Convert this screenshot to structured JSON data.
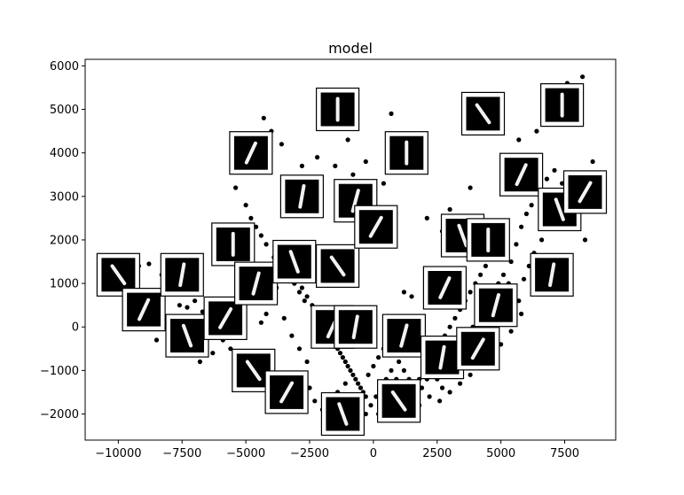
{
  "chart_data": {
    "type": "scatter",
    "title": "model",
    "xlabel": "",
    "ylabel": "",
    "xlim": [
      -11300,
      9500
    ],
    "ylim": [
      -2600,
      6150
    ],
    "xticks": [
      -10000,
      -7500,
      -5000,
      -2500,
      0,
      2500,
      5000,
      7500
    ],
    "yticks": [
      -2000,
      -1000,
      0,
      1000,
      2000,
      3000,
      4000,
      5000,
      6000
    ],
    "xtick_labels": [
      "−10000",
      "−7500",
      "−5000",
      "−2500",
      "0",
      "2500",
      "5000",
      "7500"
    ],
    "ytick_labels": [
      "−2000",
      "−1000",
      "0",
      "1000",
      "2000",
      "3000",
      "4000",
      "5000",
      "6000"
    ],
    "grid": false,
    "point_color": "#000000",
    "points": [
      [
        -9800,
        1450
      ],
      [
        -9200,
        1400
      ],
      [
        -8800,
        1450
      ],
      [
        -8300,
        1200
      ],
      [
        -7900,
        1000
      ],
      [
        -7600,
        500
      ],
      [
        -7300,
        450
      ],
      [
        -7000,
        600
      ],
      [
        -6700,
        350
      ],
      [
        -6400,
        200
      ],
      [
        -6200,
        -100
      ],
      [
        -5900,
        -300
      ],
      [
        -5600,
        -500
      ],
      [
        -5300,
        -700
      ],
      [
        -5000,
        -900
      ],
      [
        -4700,
        -1100
      ],
      [
        -4400,
        100
      ],
      [
        -4200,
        300
      ],
      [
        -4000,
        600
      ],
      [
        -3800,
        900
      ],
      [
        -3600,
        1100
      ],
      [
        -3400,
        1300
      ],
      [
        -3200,
        1500
      ],
      [
        -3000,
        1700
      ],
      [
        -2800,
        900
      ],
      [
        -2600,
        700
      ],
      [
        -2400,
        500
      ],
      [
        -2200,
        300
      ],
      [
        -2000,
        100
      ],
      [
        -1800,
        -100
      ],
      [
        -1600,
        -300
      ],
      [
        -1400,
        -500
      ],
      [
        -1200,
        -700
      ],
      [
        -1000,
        -900
      ],
      [
        -800,
        -1100
      ],
      [
        -600,
        -1300
      ],
      [
        -400,
        -1500
      ],
      [
        -200,
        -1100
      ],
      [
        0,
        -900
      ],
      [
        200,
        -700
      ],
      [
        400,
        -500
      ],
      [
        600,
        -300
      ],
      [
        800,
        -600
      ],
      [
        1000,
        -800
      ],
      [
        1200,
        -1000
      ],
      [
        1400,
        -1200
      ],
      [
        1600,
        -1400
      ],
      [
        1800,
        -1200
      ],
      [
        2000,
        -1000
      ],
      [
        2200,
        -800
      ],
      [
        2400,
        -600
      ],
      [
        2600,
        -400
      ],
      [
        2800,
        -200
      ],
      [
        3000,
        0
      ],
      [
        3200,
        200
      ],
      [
        3400,
        400
      ],
      [
        3600,
        600
      ],
      [
        3800,
        800
      ],
      [
        4000,
        1000
      ],
      [
        4200,
        1200
      ],
      [
        4400,
        1400
      ],
      [
        4600,
        1600
      ],
      [
        4800,
        1800
      ],
      [
        5000,
        2000
      ],
      [
        5200,
        1700
      ],
      [
        5400,
        1500
      ],
      [
        5600,
        1900
      ],
      [
        5800,
        2300
      ],
      [
        6000,
        2600
      ],
      [
        6200,
        2800
      ],
      [
        6500,
        3200
      ],
      [
        6800,
        3400
      ],
      [
        7100,
        3600
      ],
      [
        7400,
        3300
      ],
      [
        7700,
        2800
      ],
      [
        8000,
        2400
      ],
      [
        8300,
        2000
      ],
      [
        8600,
        3800
      ],
      [
        8900,
        3500
      ],
      [
        8200,
        5750
      ],
      [
        7600,
        5600
      ],
      [
        7200,
        4900
      ],
      [
        6700,
        4700
      ],
      [
        6400,
        4500
      ],
      [
        5700,
        4300
      ],
      [
        4500,
        4500
      ],
      [
        3800,
        3200
      ],
      [
        3000,
        2700
      ],
      [
        2700,
        2200
      ],
      [
        2100,
        2500
      ],
      [
        1500,
        700
      ],
      [
        1200,
        800
      ],
      [
        700,
        4900
      ],
      [
        400,
        3300
      ],
      [
        -300,
        3800
      ],
      [
        -800,
        3500
      ],
      [
        -1000,
        4300
      ],
      [
        -1500,
        3700
      ],
      [
        -2200,
        3900
      ],
      [
        -2800,
        3700
      ],
      [
        -3600,
        4200
      ],
      [
        -4000,
        4500
      ],
      [
        -4300,
        4800
      ],
      [
        -5400,
        3200
      ],
      [
        -5000,
        2800
      ],
      [
        -4800,
        2500
      ],
      [
        -4600,
        2300
      ],
      [
        -4400,
        2100
      ],
      [
        -4200,
        1900
      ],
      [
        -3900,
        1600
      ],
      [
        -3700,
        1400
      ],
      [
        -3300,
        1200
      ],
      [
        -3100,
        1000
      ],
      [
        -2900,
        800
      ],
      [
        -2700,
        600
      ],
      [
        -2300,
        400
      ],
      [
        -2100,
        200
      ],
      [
        -1900,
        0
      ],
      [
        -1700,
        -200
      ],
      [
        -1500,
        -400
      ],
      [
        -1300,
        -600
      ],
      [
        -1100,
        -800
      ],
      [
        -900,
        -1000
      ],
      [
        -700,
        -1200
      ],
      [
        -500,
        -1400
      ],
      [
        -300,
        -1600
      ],
      [
        -100,
        -1800
      ],
      [
        100,
        -1600
      ],
      [
        300,
        -1400
      ],
      [
        500,
        -1200
      ],
      [
        700,
        -1000
      ],
      [
        900,
        -1200
      ],
      [
        1100,
        -1400
      ],
      [
        1300,
        -1600
      ],
      [
        1500,
        -1800
      ],
      [
        1700,
        -1600
      ],
      [
        1900,
        -1400
      ],
      [
        2100,
        -1200
      ],
      [
        2300,
        -1000
      ],
      [
        2500,
        -1200
      ],
      [
        2700,
        -1400
      ],
      [
        2900,
        -1000
      ],
      [
        3100,
        -800
      ],
      [
        3300,
        -600
      ],
      [
        3500,
        -400
      ],
      [
        3700,
        -200
      ],
      [
        3900,
        0
      ],
      [
        4100,
        200
      ],
      [
        4300,
        400
      ],
      [
        4500,
        600
      ],
      [
        4700,
        800
      ],
      [
        4900,
        1000
      ],
      [
        5100,
        1200
      ],
      [
        5300,
        1000
      ],
      [
        5500,
        800
      ],
      [
        5700,
        600
      ],
      [
        5900,
        1100
      ],
      [
        6100,
        1400
      ],
      [
        6300,
        1700
      ],
      [
        6600,
        2000
      ],
      [
        -8500,
        -300
      ],
      [
        -8200,
        200
      ],
      [
        -7700,
        -200
      ],
      [
        -7200,
        -600
      ],
      [
        -6800,
        -800
      ],
      [
        -6300,
        -600
      ],
      [
        -5800,
        -200
      ],
      [
        -5500,
        0
      ],
      [
        -5200,
        300
      ],
      [
        -4900,
        600
      ],
      [
        -4600,
        900
      ],
      [
        -4100,
        1200
      ],
      [
        -3500,
        200
      ],
      [
        -3200,
        -200
      ],
      [
        -2900,
        -500
      ],
      [
        -2600,
        -800
      ],
      [
        -2500,
        -1400
      ],
      [
        -2300,
        -1700
      ],
      [
        -2000,
        -1900
      ],
      [
        -1700,
        -2100
      ],
      [
        -1400,
        -1500
      ],
      [
        -1100,
        -1300
      ],
      [
        -800,
        -1600
      ],
      [
        -600,
        -1900
      ],
      [
        -300,
        -2000
      ],
      [
        200,
        -2000
      ],
      [
        600,
        -1800
      ],
      [
        1000,
        -1700
      ],
      [
        1400,
        -1900
      ],
      [
        1800,
        -1800
      ],
      [
        2200,
        -1600
      ],
      [
        2600,
        -1700
      ],
      [
        3000,
        -1500
      ],
      [
        3400,
        -1300
      ],
      [
        3800,
        -1100
      ],
      [
        4200,
        -900
      ],
      [
        4600,
        -700
      ],
      [
        5000,
        -400
      ],
      [
        5400,
        -100
      ],
      [
        5800,
        300
      ]
    ],
    "thumbnails": [
      {
        "x": -10000,
        "y": 1200,
        "digit": "1"
      },
      {
        "x": -9000,
        "y": 400,
        "digit": "1"
      },
      {
        "x": -7500,
        "y": 1200,
        "digit": "1"
      },
      {
        "x": -7300,
        "y": -200,
        "digit": "1"
      },
      {
        "x": -5800,
        "y": 200,
        "digit": "1"
      },
      {
        "x": -5500,
        "y": 1900,
        "digit": "1"
      },
      {
        "x": -4600,
        "y": 1000,
        "digit": "1"
      },
      {
        "x": -4700,
        "y": -1000,
        "digit": "1"
      },
      {
        "x": -4800,
        "y": 4000,
        "digit": "1"
      },
      {
        "x": -2800,
        "y": 3000,
        "digit": "1"
      },
      {
        "x": -3100,
        "y": 1500,
        "digit": "1"
      },
      {
        "x": -3400,
        "y": -1500,
        "digit": "1"
      },
      {
        "x": -1400,
        "y": 5000,
        "digit": "1"
      },
      {
        "x": -700,
        "y": 2900,
        "digit": "1"
      },
      {
        "x": -1400,
        "y": 1400,
        "digit": "1"
      },
      {
        "x": -1600,
        "y": 0,
        "digit": "1"
      },
      {
        "x": -700,
        "y": 0,
        "digit": "1"
      },
      {
        "x": -1200,
        "y": -2000,
        "digit": "1"
      },
      {
        "x": 100,
        "y": 2300,
        "digit": "1"
      },
      {
        "x": 1300,
        "y": 4000,
        "digit": "1"
      },
      {
        "x": 1200,
        "y": -200,
        "digit": "1"
      },
      {
        "x": 1000,
        "y": -1700,
        "digit": "1"
      },
      {
        "x": 2800,
        "y": 900,
        "digit": "1"
      },
      {
        "x": 2700,
        "y": -700,
        "digit": "1"
      },
      {
        "x": 3500,
        "y": 2100,
        "digit": "1"
      },
      {
        "x": 4100,
        "y": -500,
        "digit": "1"
      },
      {
        "x": 4500,
        "y": 2000,
        "digit": "1"
      },
      {
        "x": 4800,
        "y": 500,
        "digit": "1"
      },
      {
        "x": 4300,
        "y": 4900,
        "digit": "1"
      },
      {
        "x": 5800,
        "y": 3500,
        "digit": "1"
      },
      {
        "x": 7000,
        "y": 1200,
        "digit": "1"
      },
      {
        "x": 7300,
        "y": 2700,
        "digit": "1"
      },
      {
        "x": 8300,
        "y": 3100,
        "digit": "1"
      },
      {
        "x": 7400,
        "y": 5100,
        "digit": "1"
      }
    ]
  }
}
